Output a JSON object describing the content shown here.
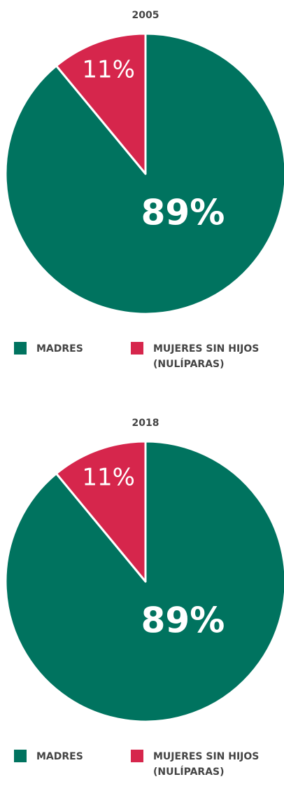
{
  "chart_data": [
    {
      "type": "pie",
      "title": "2005",
      "categories": [
        "MADRES",
        "MUJERES SIN HIJOS (NULÍPARAS)"
      ],
      "values": [
        89,
        11
      ],
      "value_labels": [
        "89%",
        "11%"
      ],
      "colors": [
        "#00735f",
        "#d6264c"
      ]
    },
    {
      "type": "pie",
      "title": "2018",
      "categories": [
        "MADRES",
        "MUJERES SIN HIJOS (NULÍPARAS)"
      ],
      "values": [
        89,
        11
      ],
      "value_labels": [
        "89%",
        "11%"
      ],
      "colors": [
        "#00735f",
        "#d6264c"
      ]
    }
  ]
}
